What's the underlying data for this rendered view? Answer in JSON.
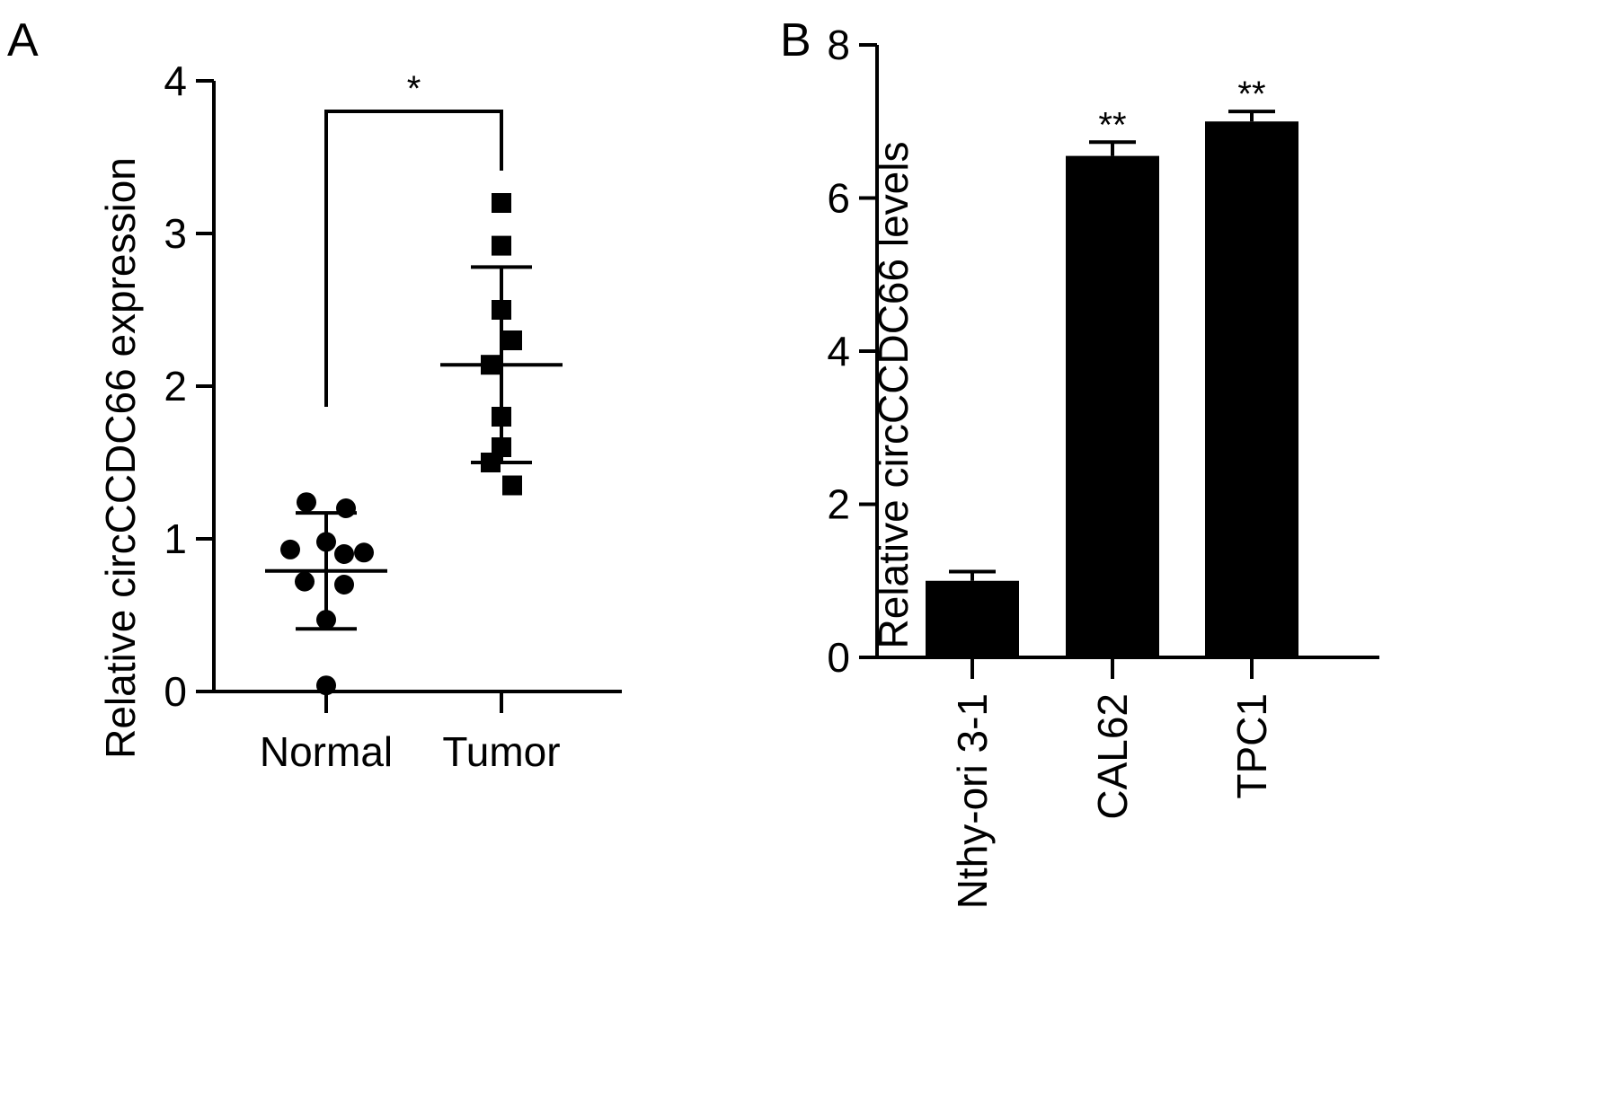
{
  "chart_data": [
    {
      "panel_label": "A",
      "type": "scatter",
      "ylabel": "Relative circCCDC66 expression",
      "ylim": [
        0,
        4
      ],
      "yticks": [
        "0",
        "1",
        "2",
        "3",
        "4"
      ],
      "categories": [
        "Normal",
        "Tumor"
      ],
      "groups": [
        {
          "category": "Normal",
          "marker": "circle",
          "points": [
            1.24,
            1.2,
            0.98,
            0.93,
            0.91,
            0.9,
            0.72,
            0.7,
            0.47,
            0.04
          ],
          "mean": 0.79,
          "sd_upper": 1.17,
          "sd_lower": 0.41
        },
        {
          "category": "Tumor",
          "marker": "square",
          "points": [
            3.2,
            2.92,
            2.5,
            2.3,
            2.14,
            1.8,
            1.6,
            1.5,
            1.35
          ],
          "mean": 2.14,
          "sd_upper": 2.78,
          "sd_lower": 1.5
        }
      ],
      "significance": {
        "pair": [
          "Normal",
          "Tumor"
        ],
        "label": "*"
      }
    },
    {
      "panel_label": "B",
      "type": "bar",
      "ylabel": "Relative circCCDC66 levels",
      "ylim": [
        0,
        8
      ],
      "yticks": [
        "0",
        "2",
        "4",
        "6",
        "8"
      ],
      "categories": [
        "Nthy-ori 3-1",
        "CAL62",
        "TPC1"
      ],
      "values": [
        1.0,
        6.55,
        7.0
      ],
      "errors": [
        0.12,
        0.18,
        0.13
      ],
      "annotations": [
        "",
        "**",
        "**"
      ],
      "bar_color": "#000000"
    }
  ]
}
